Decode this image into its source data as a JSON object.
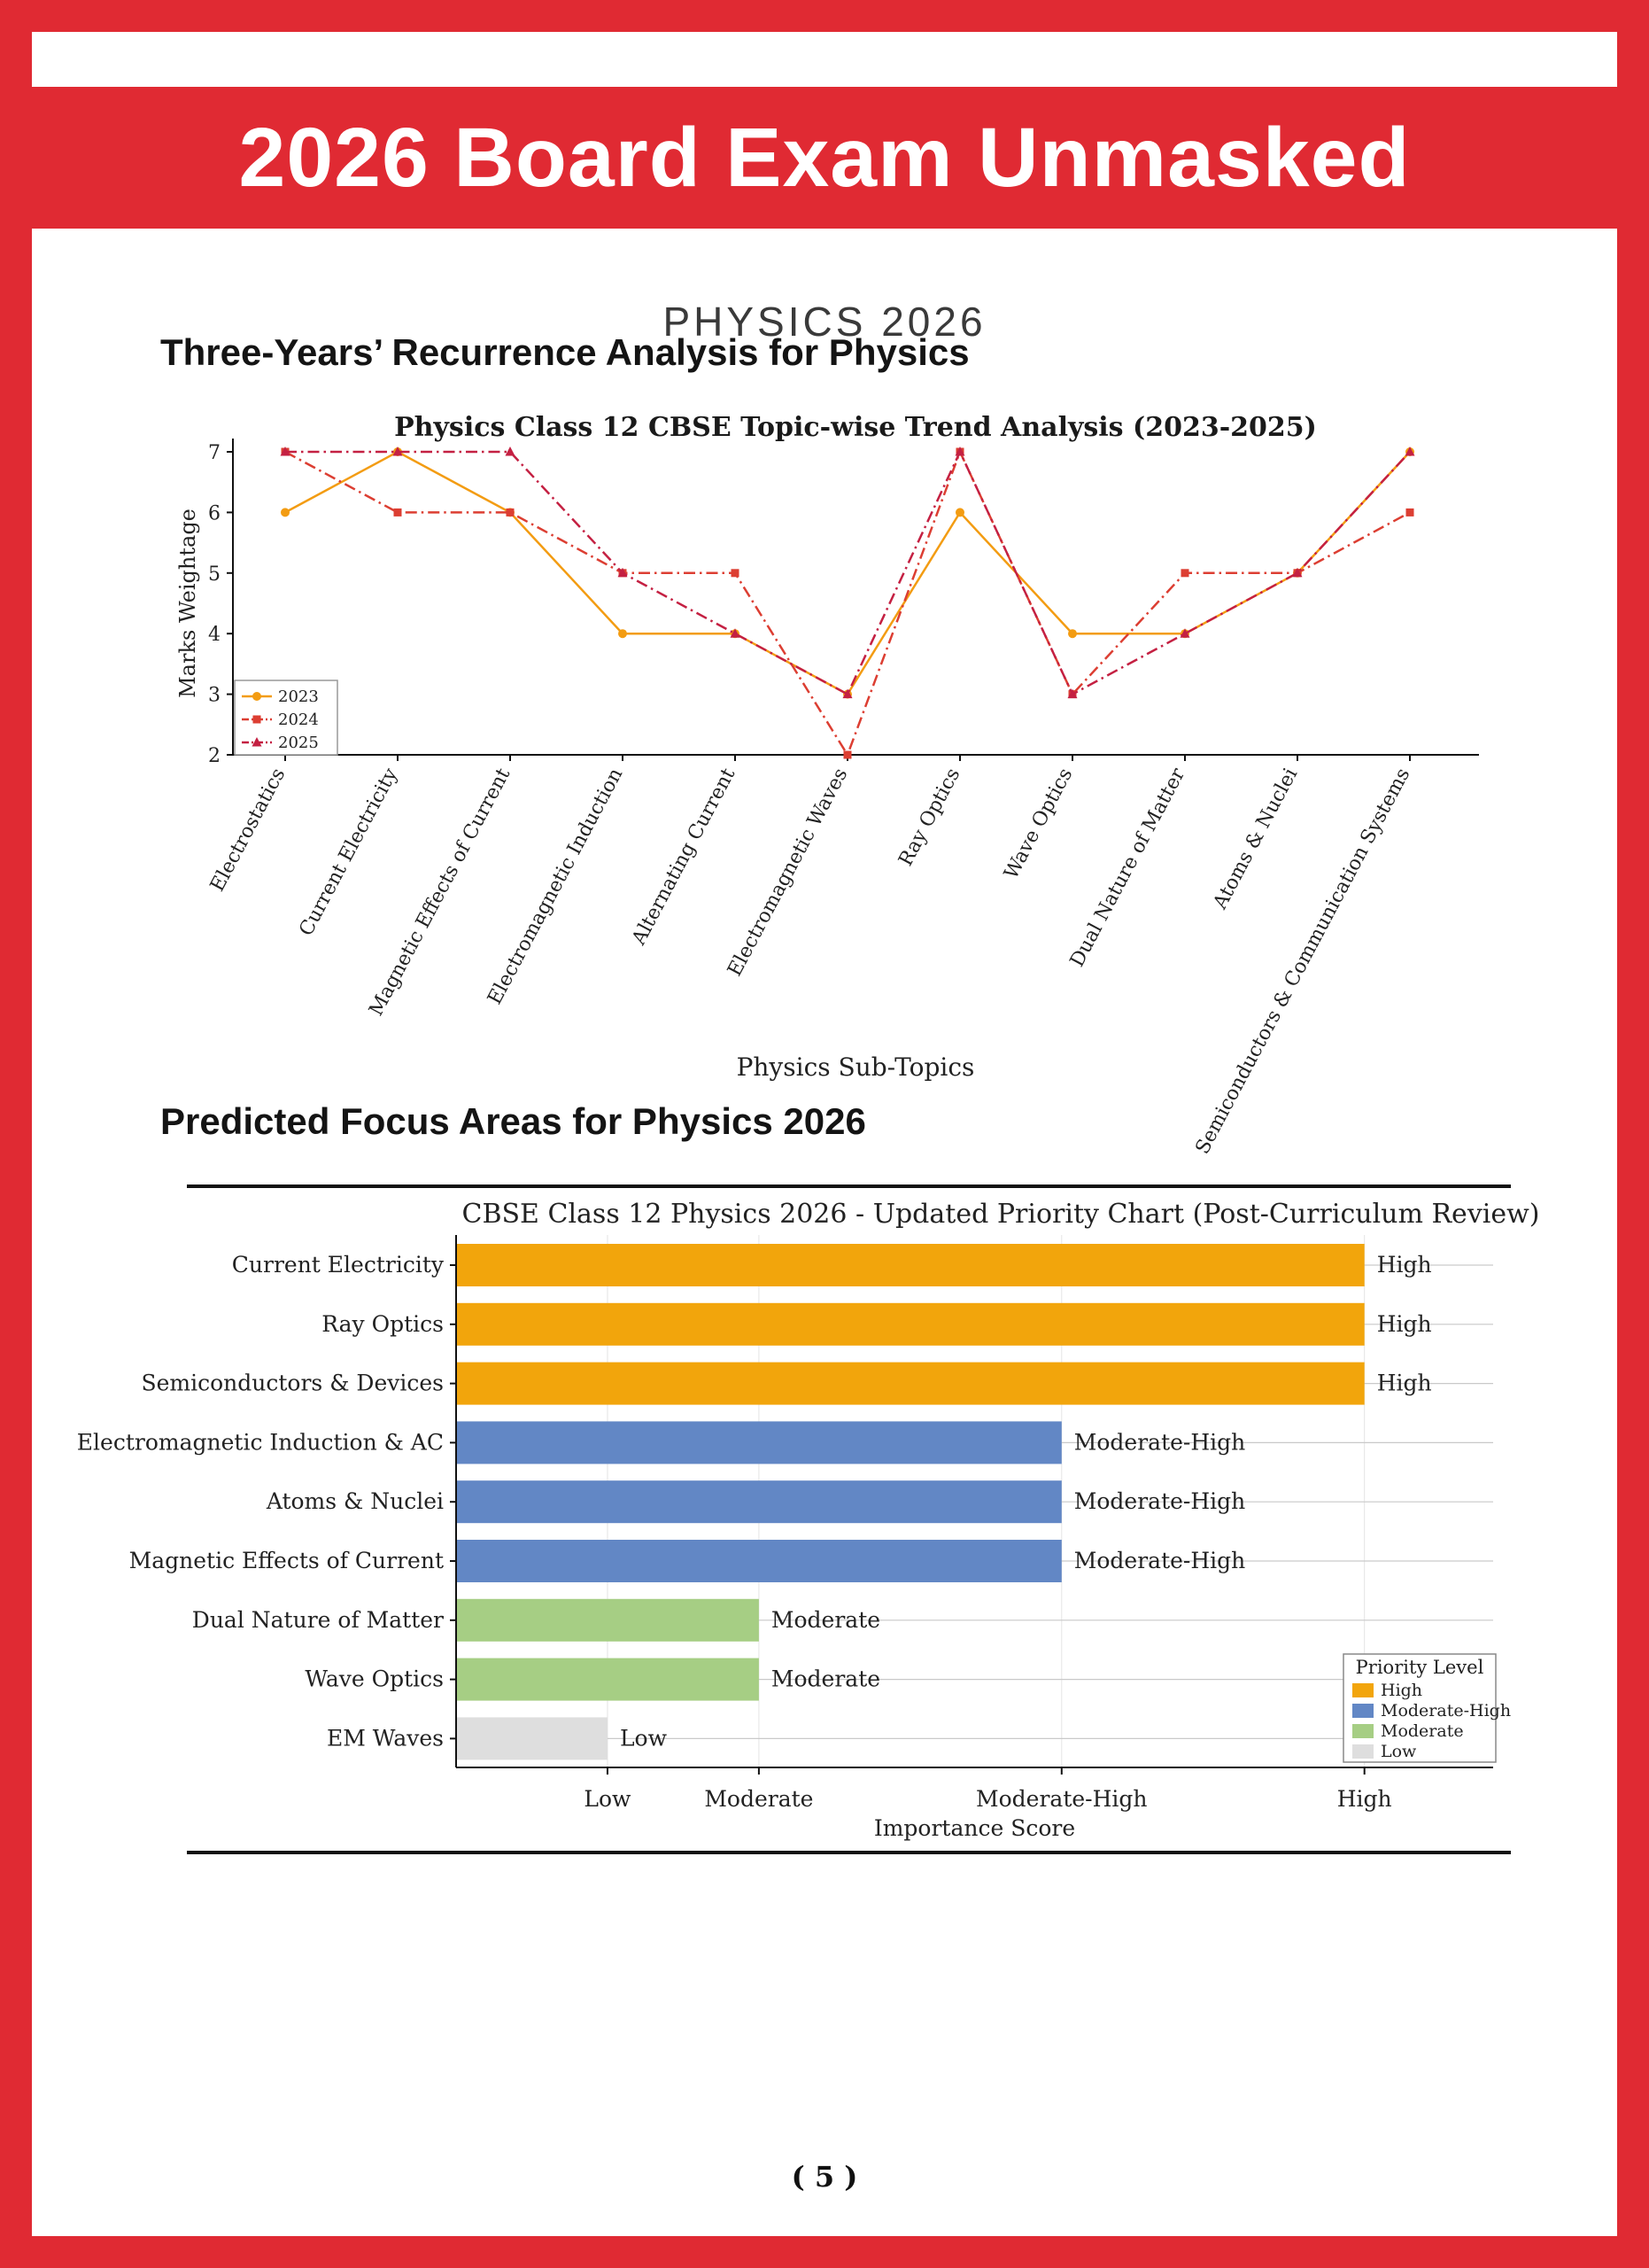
{
  "header": {
    "title": "2026 Board Exam Unmasked",
    "bg_color": "#E02A33"
  },
  "subtitle": "PHYSICS 2026",
  "sections": {
    "trend_heading": "Three-Years’ Recurrence Analysis for Physics",
    "focus_heading": "Predicted Focus Areas for Physics 2026"
  },
  "footer": {
    "page_label": "( 5 )"
  },
  "chart_data": [
    {
      "type": "line",
      "title": "Physics Class 12 CBSE Topic-wise Trend Analysis (2023-2025)",
      "xlabel": "Physics Sub-Topics",
      "ylabel": "Marks Weightage",
      "ylim": [
        2,
        7
      ],
      "yticks": [
        2,
        3,
        4,
        5,
        6,
        7
      ],
      "grid": false,
      "legend_position": "lower-left",
      "categories": [
        "Electrostatics",
        "Current Electricity",
        "Magnetic Effects of Current",
        "Electromagnetic Induction",
        "Alternating Current",
        "Electromagnetic Waves",
        "Ray Optics",
        "Wave Optics",
        "Dual Nature of Matter",
        "Atoms & Nuclei",
        "Semiconductors & Communication Systems"
      ],
      "series": [
        {
          "name": "2023",
          "color": "#F39C12",
          "style": "solid",
          "marker": "circle",
          "values": [
            6,
            7,
            6,
            4,
            4,
            3,
            6,
            4,
            4,
            5,
            7
          ]
        },
        {
          "name": "2024",
          "color": "#DC3E32",
          "style": "dashdot",
          "marker": "square",
          "values": [
            7,
            6,
            6,
            5,
            5,
            2,
            7,
            3,
            5,
            5,
            6
          ]
        },
        {
          "name": "2025",
          "color": "#C42042",
          "style": "dashdot",
          "marker": "triangle",
          "values": [
            7,
            7,
            7,
            5,
            4,
            3,
            7,
            3,
            4,
            5,
            7
          ]
        }
      ]
    },
    {
      "type": "bar",
      "orientation": "horizontal",
      "title": "CBSE Class 12 Physics 2026 - Updated Priority Chart (Post-Curriculum Review)",
      "xlabel": "Importance Score",
      "xlim": [
        0,
        6.85
      ],
      "xticks": [
        {
          "value": 1,
          "label": "Low"
        },
        {
          "value": 2,
          "label": "Moderate"
        },
        {
          "value": 4,
          "label": "Moderate-High"
        },
        {
          "value": 6,
          "label": "High"
        }
      ],
      "categories": [
        "Current Electricity",
        "Ray Optics",
        "Semiconductors & Devices",
        "Electromagnetic Induction & AC",
        "Atoms & Nuclei",
        "Magnetic Effects of Current",
        "Dual Nature of Matter",
        "Wave Optics",
        "EM Waves"
      ],
      "values": [
        6,
        6,
        6,
        4,
        4,
        4,
        2,
        2,
        1
      ],
      "priorities": [
        "High",
        "High",
        "High",
        "Moderate-High",
        "Moderate-High",
        "Moderate-High",
        "Moderate",
        "Moderate",
        "Low"
      ],
      "colors": {
        "High": "#F2A50C",
        "Moderate-High": "#6287C5",
        "Moderate": "#A6CE84",
        "Low": "#DEDEDE"
      },
      "legend": {
        "title": "Priority Level",
        "entries": [
          "High",
          "Moderate-High",
          "Moderate",
          "Low"
        ]
      }
    }
  ]
}
